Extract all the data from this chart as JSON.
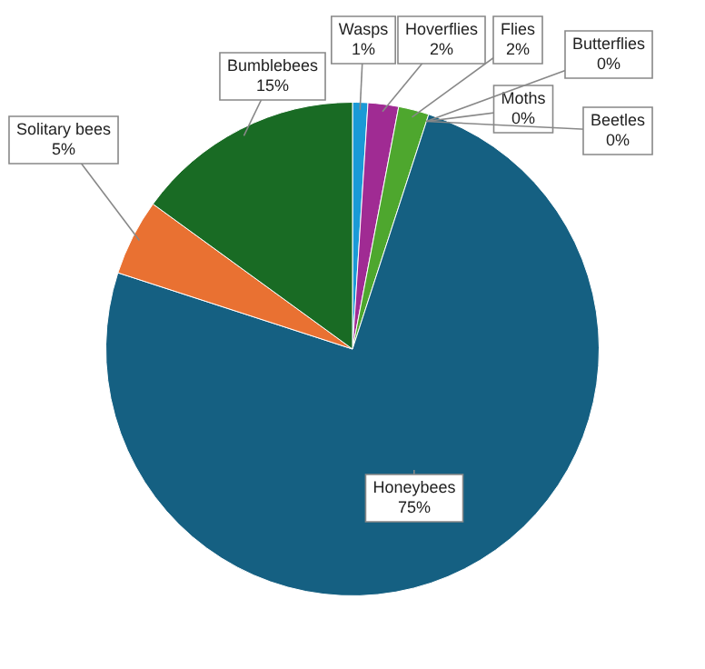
{
  "chart_data": {
    "type": "pie",
    "categories": [
      "Wasps",
      "Hoverflies",
      "Flies",
      "Moths",
      "Butterflies",
      "Beetles",
      "Honeybees",
      "Solitary bees",
      "Bumblebees"
    ],
    "values": [
      1,
      2,
      2,
      0,
      0,
      0,
      75,
      5,
      15
    ],
    "value_labels": [
      "1%",
      "2%",
      "2%",
      "0%",
      "0%",
      "0%",
      "75%",
      "5%",
      "15%"
    ],
    "colors": [
      "#1a9ad6",
      "#a02b93",
      "#4ea72e",
      "#3b3b3b",
      "#6b3a1a",
      "#2b4a1a",
      "#156082",
      "#e97132",
      "#196b24"
    ],
    "legend": false
  }
}
